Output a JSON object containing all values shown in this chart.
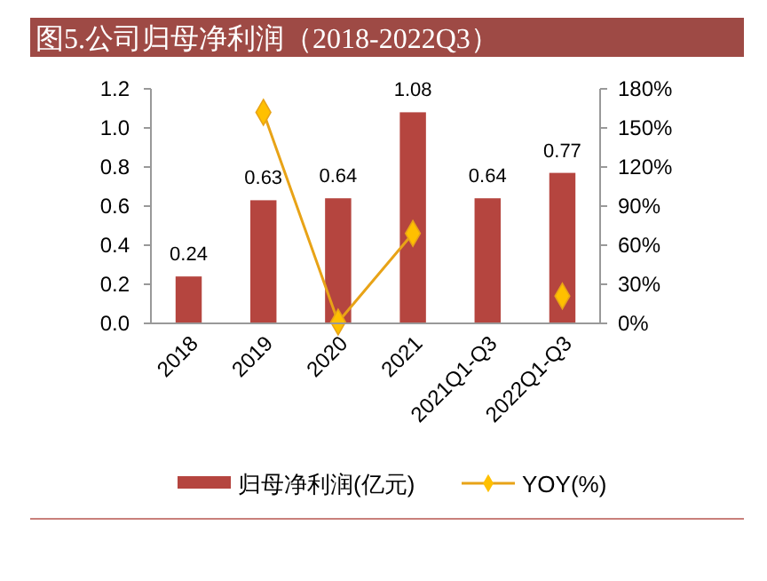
{
  "chart_data": {
    "type": "bar",
    "title": "图5.公司归母净利润（2018-2022Q3）",
    "categories": [
      "2018",
      "2019",
      "2020",
      "2021",
      "2021Q1-Q3",
      "2022Q1-Q3"
    ],
    "series": [
      {
        "name": "归母净利润(亿元)",
        "color": "#b5453f",
        "values": [
          0.24,
          0.63,
          0.64,
          1.08,
          0.64,
          0.77
        ],
        "value_labels": [
          "0.24",
          "0.63",
          "0.64",
          "1.08",
          "0.64",
          "0.77"
        ]
      },
      {
        "name": "YOY(%)",
        "type": "line",
        "axis": "y2",
        "color": "#e8a317",
        "marker": "diamond",
        "values": [
          null,
          162,
          1,
          69,
          null,
          21
        ]
      }
    ],
    "ylim": [
      0,
      1.2
    ],
    "yticks": [
      {
        "value": 0,
        "label": "0.0"
      },
      0.2,
      0.4,
      0.6,
      0.8,
      {
        "value": 1,
        "label": "1.0"
      },
      1.2
    ],
    "y2lim": [
      0,
      180
    ],
    "y2ticks": [
      {
        "value": 0,
        "label": "0%"
      },
      {
        "value": 30,
        "label": "30%"
      },
      {
        "value": 60,
        "label": "60%"
      },
      {
        "value": 90,
        "label": "90%"
      },
      {
        "value": 120,
        "label": "120%"
      },
      {
        "value": 150,
        "label": "150%"
      },
      {
        "value": 180,
        "label": "180%"
      }
    ],
    "legend": "bottom",
    "grid": false
  }
}
